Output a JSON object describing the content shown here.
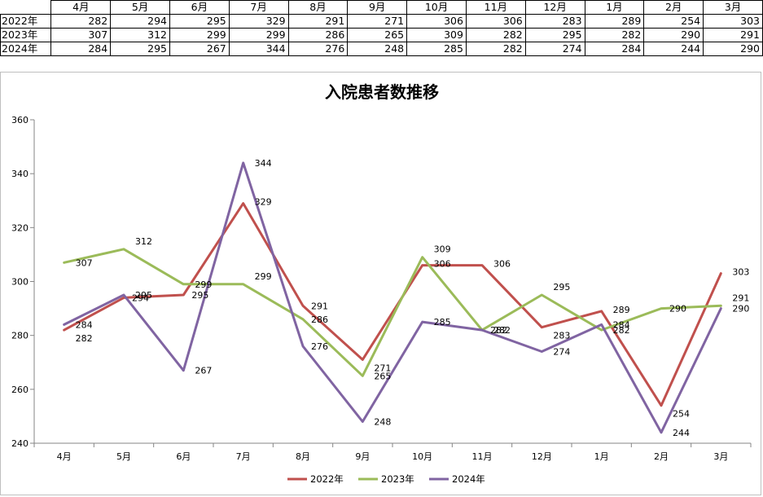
{
  "table": {
    "months": [
      "4月",
      "5月",
      "6月",
      "7月",
      "8月",
      "9月",
      "10月",
      "11月",
      "12月",
      "1月",
      "2月",
      "3月"
    ],
    "rows": [
      {
        "label": "2022年",
        "values": [
          282,
          294,
          295,
          329,
          291,
          271,
          306,
          306,
          283,
          289,
          254,
          303
        ]
      },
      {
        "label": "2023年",
        "values": [
          307,
          312,
          299,
          299,
          286,
          265,
          309,
          282,
          295,
          282,
          290,
          291
        ]
      },
      {
        "label": "2024年",
        "values": [
          284,
          295,
          267,
          344,
          276,
          248,
          285,
          282,
          274,
          284,
          244,
          290
        ]
      }
    ]
  },
  "chart_data": {
    "type": "line",
    "title": "入院患者数推移",
    "categories": [
      "4月",
      "5月",
      "6月",
      "7月",
      "8月",
      "9月",
      "10月",
      "11月",
      "12月",
      "1月",
      "2月",
      "3月"
    ],
    "series": [
      {
        "name": "2022年",
        "color": "#c0504d",
        "values": [
          282,
          294,
          295,
          329,
          291,
          271,
          306,
          306,
          283,
          289,
          254,
          303
        ]
      },
      {
        "name": "2023年",
        "color": "#9bbb59",
        "values": [
          307,
          312,
          299,
          299,
          286,
          265,
          309,
          282,
          295,
          282,
          290,
          291
        ]
      },
      {
        "name": "2024年",
        "color": "#8064a2",
        "values": [
          284,
          295,
          267,
          344,
          276,
          248,
          285,
          282,
          274,
          284,
          244,
          290
        ]
      }
    ],
    "yticks": [
      240,
      260,
      280,
      300,
      320,
      340,
      360
    ],
    "ylim": [
      240,
      360
    ],
    "grid": false,
    "legend": "bottom"
  }
}
